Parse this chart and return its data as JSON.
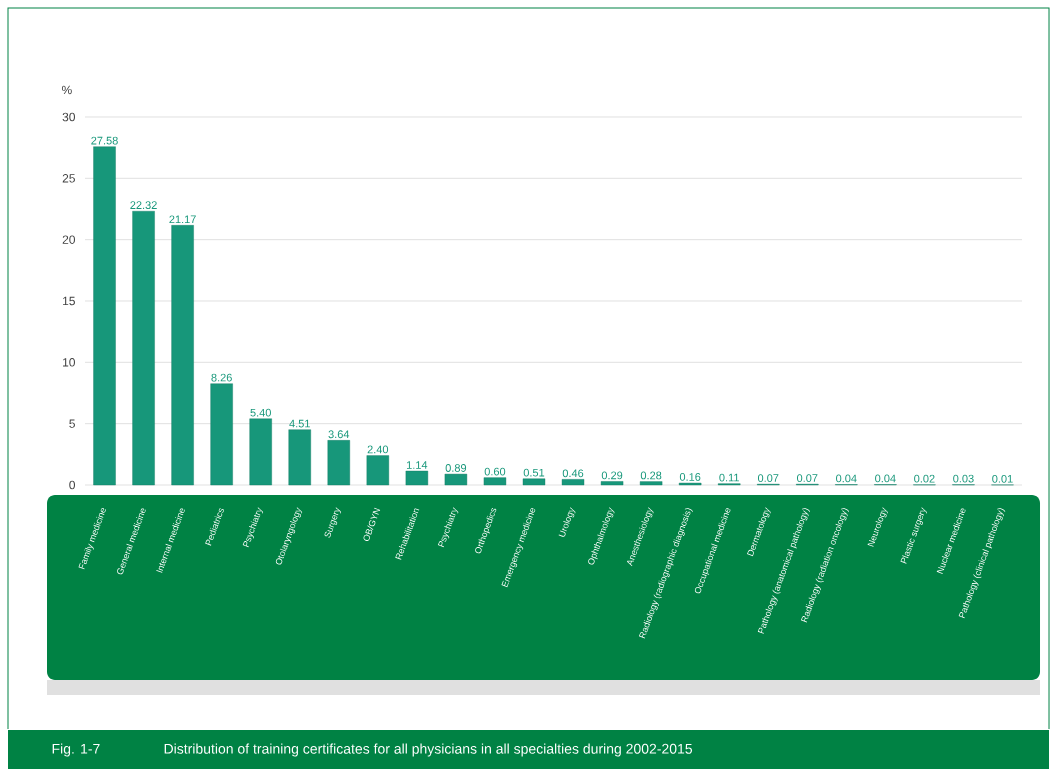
{
  "chart_data": {
    "type": "bar",
    "title": "Distribution of training certificates for all physicians in all specialties during 2002-2015",
    "ylabel": "%",
    "annotations": [
      "Fig. 1-7"
    ],
    "categories": [
      "Family medicine",
      "General medicine",
      "Internal medicine",
      "Pediatrics",
      "Psychiatry",
      "Otolaryngology",
      "Surgery",
      "OB/GYN",
      "Rehabilitation",
      "Psychiatry",
      "Orthopedics",
      "Emergency medicine",
      "Urology",
      "Ophthalmology",
      "Anesthesiology",
      "Radiology (radiographic diagnosis)",
      "Occupational medicine",
      "Dermatology",
      "Pathology (anatomical pathology)",
      "Radiology (radiation oncology)",
      "Neurology",
      "Plastic surgery",
      "Nuclear medicine",
      "Pathology (clinical pathology)"
    ],
    "values": [
      27.58,
      22.32,
      21.17,
      8.26,
      5.4,
      4.51,
      3.64,
      2.4,
      1.14,
      0.89,
      0.6,
      0.51,
      0.46,
      0.29,
      0.28,
      0.16,
      0.11,
      0.07,
      0.07,
      0.04,
      0.04,
      0.02,
      0.03,
      0.01
    ],
    "value_labels": [
      "27.58",
      "22.32",
      "21.17",
      "8.26",
      "5.40",
      "4.51",
      "3.64",
      "2.40",
      "1.14",
      "0.89",
      "0.60",
      "0.51",
      "0.46",
      "0.29",
      "0.28",
      "0.16",
      "0.11",
      "0.07",
      "0.07",
      "0.04",
      "0.04",
      "0.02",
      "0.03",
      "0.01"
    ],
    "color": "#17977a",
    "ylim": [
      0,
      30
    ],
    "yticks": [
      0,
      5,
      10,
      15,
      20,
      25,
      30
    ],
    "grid": "y"
  }
}
